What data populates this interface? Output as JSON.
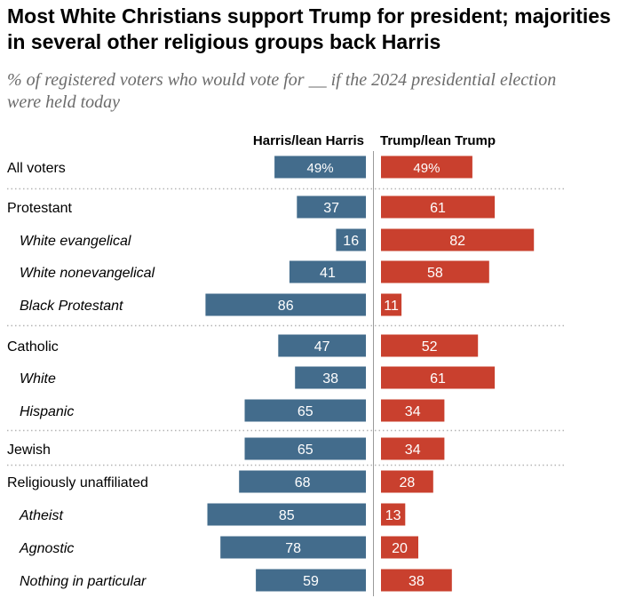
{
  "title": "Most White Christians support Trump for president; majorities in several other religious groups back Harris",
  "subtitle": "% of registered voters who would vote for __ if the 2024 presidential election were held today",
  "chart_data": {
    "type": "bar",
    "orientation": "horizontal-diverging",
    "series": [
      {
        "name": "Harris/lean Harris",
        "color": "#436c8c",
        "values": [
          49,
          37,
          16,
          41,
          86,
          47,
          38,
          65,
          65,
          68,
          85,
          78,
          59
        ]
      },
      {
        "name": "Trump/lean Trump",
        "color": "#c9402e",
        "values": [
          49,
          61,
          82,
          58,
          11,
          52,
          61,
          34,
          34,
          28,
          13,
          20,
          38
        ]
      }
    ],
    "categories": [
      "All voters",
      "Protestant",
      "White evangelical",
      "White nonevangelical",
      "Black Protestant",
      "Catholic",
      "White",
      "Hispanic",
      "Jewish",
      "Religiously unaffiliated",
      "Atheist",
      "Agnostic",
      "Nothing in particular"
    ],
    "subgroup": [
      false,
      false,
      true,
      true,
      true,
      false,
      true,
      true,
      false,
      false,
      true,
      true,
      true
    ],
    "percent_suffix_first_row": true,
    "xlim": [
      0,
      100
    ],
    "grid": false,
    "colors": {
      "harris": "#436c8c",
      "trump": "#c9402e",
      "separator": "#b5b5b5"
    }
  }
}
